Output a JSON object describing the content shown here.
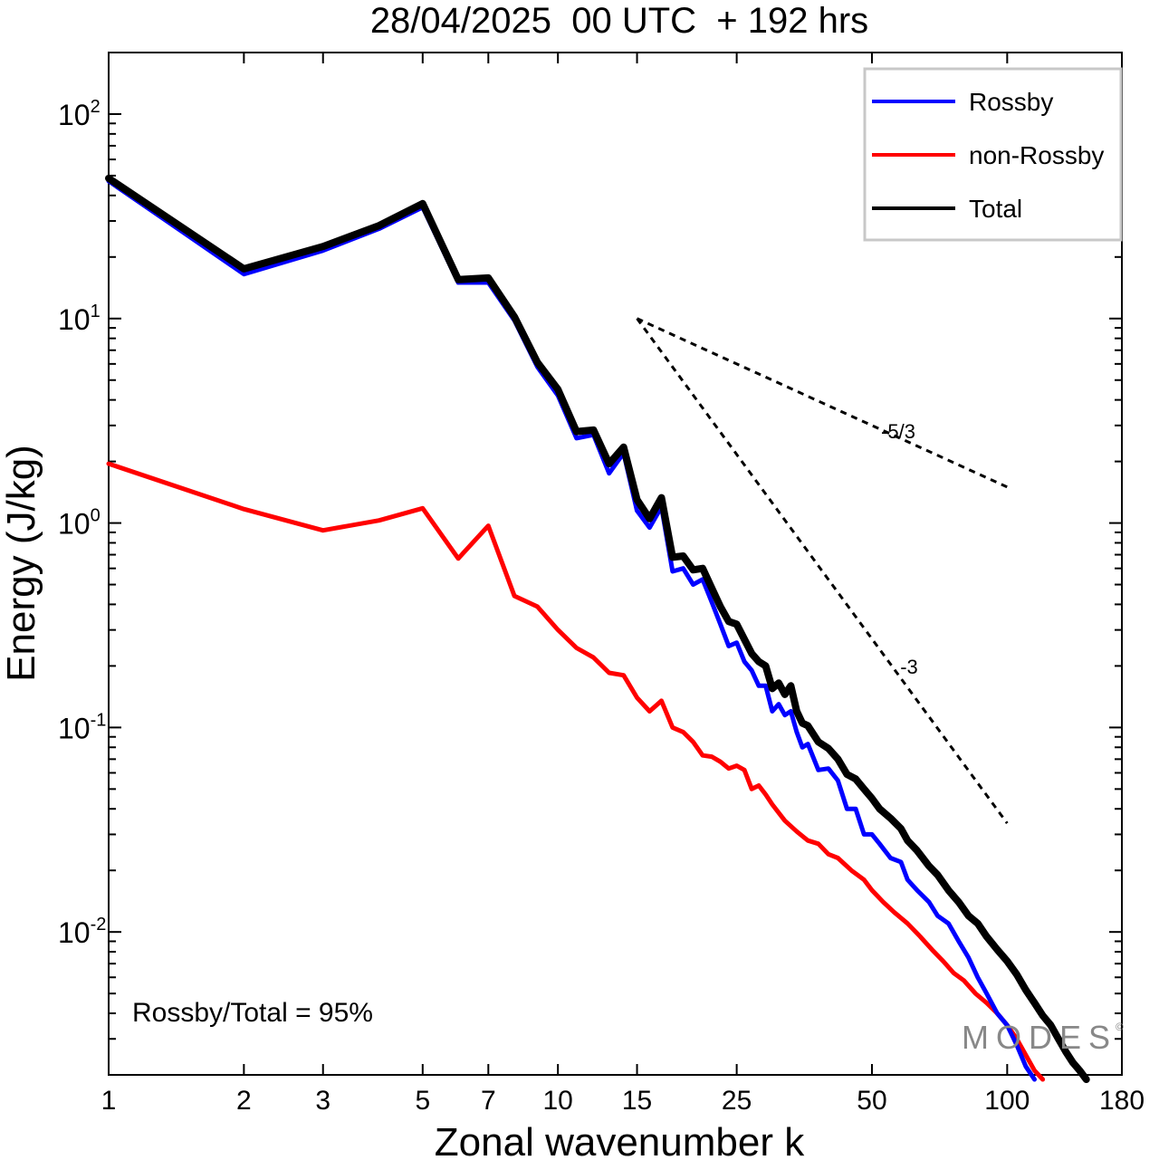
{
  "title": "28/04/2025  00 UTC  + 192 hrs",
  "chart_data": {
    "type": "line",
    "title": "28/04/2025  00 UTC  + 192 hrs",
    "xlabel": "Zonal wavenumber k",
    "ylabel": "Energy (J/kg)",
    "xscale": "log",
    "yscale": "log",
    "xlim": [
      1,
      180
    ],
    "ylim": [
      0.002,
      200
    ],
    "x_ticks": [
      1,
      2,
      3,
      5,
      7,
      10,
      15,
      25,
      50,
      100,
      180
    ],
    "x_tick_labels": [
      "1",
      "2",
      "3",
      "5",
      "7",
      "10",
      "15",
      "25",
      "50",
      "100",
      "180"
    ],
    "y_ticks": [
      {
        "value": 100,
        "base": "10",
        "exp": "2"
      },
      {
        "value": 10,
        "base": "10",
        "exp": "1"
      },
      {
        "value": 1,
        "base": "10",
        "exp": "0"
      },
      {
        "value": 0.1,
        "base": "10",
        "exp": "-1"
      },
      {
        "value": 0.01,
        "base": "10",
        "exp": "-2"
      }
    ],
    "legend_position": "top-right",
    "series": [
      {
        "name": "Rossby",
        "color": "#0000ff",
        "points": [
          [
            1,
            47
          ],
          [
            2,
            16.5
          ],
          [
            3,
            21.5
          ],
          [
            4,
            27.5
          ],
          [
            5,
            35
          ],
          [
            6,
            15
          ],
          [
            7,
            15
          ],
          [
            8,
            9.8
          ],
          [
            9,
            5.8
          ],
          [
            10,
            4.2
          ],
          [
            11,
            2.6
          ],
          [
            12,
            2.7
          ],
          [
            13,
            1.75
          ],
          [
            14,
            2.2
          ],
          [
            15,
            1.15
          ],
          [
            16,
            0.95
          ],
          [
            17,
            1.2
          ],
          [
            18,
            0.58
          ],
          [
            19,
            0.6
          ],
          [
            20,
            0.5
          ],
          [
            21,
            0.53
          ],
          [
            22,
            0.41
          ],
          [
            23,
            0.32
          ],
          [
            24,
            0.25
          ],
          [
            25,
            0.26
          ],
          [
            26,
            0.21
          ],
          [
            27,
            0.19
          ],
          [
            28,
            0.16
          ],
          [
            29,
            0.16
          ],
          [
            30,
            0.12
          ],
          [
            31,
            0.13
          ],
          [
            32,
            0.115
          ],
          [
            33,
            0.12
          ],
          [
            34,
            0.095
          ],
          [
            35,
            0.08
          ],
          [
            36,
            0.083
          ],
          [
            38,
            0.062
          ],
          [
            40,
            0.063
          ],
          [
            42,
            0.055
          ],
          [
            44,
            0.04
          ],
          [
            46,
            0.04
          ],
          [
            48,
            0.03
          ],
          [
            50,
            0.03
          ],
          [
            52,
            0.027
          ],
          [
            55,
            0.023
          ],
          [
            58,
            0.022
          ],
          [
            60,
            0.018
          ],
          [
            63,
            0.016
          ],
          [
            67,
            0.014
          ],
          [
            70,
            0.012
          ],
          [
            74,
            0.011
          ],
          [
            78,
            0.009
          ],
          [
            82,
            0.0075
          ],
          [
            86,
            0.006
          ],
          [
            90,
            0.005
          ],
          [
            95,
            0.004
          ],
          [
            100,
            0.0035
          ],
          [
            105,
            0.0028
          ],
          [
            110,
            0.0022
          ],
          [
            115,
            0.0019
          ]
        ]
      },
      {
        "name": "non-Rossby",
        "color": "#ff0000",
        "points": [
          [
            1,
            1.95
          ],
          [
            2,
            1.17
          ],
          [
            3,
            0.92
          ],
          [
            4,
            1.03
          ],
          [
            5,
            1.18
          ],
          [
            6,
            0.67
          ],
          [
            7,
            0.97
          ],
          [
            8,
            0.44
          ],
          [
            9,
            0.39
          ],
          [
            10,
            0.3
          ],
          [
            11,
            0.245
          ],
          [
            12,
            0.22
          ],
          [
            13,
            0.185
          ],
          [
            14,
            0.18
          ],
          [
            15,
            0.14
          ],
          [
            16,
            0.12
          ],
          [
            17,
            0.135
          ],
          [
            18,
            0.1
          ],
          [
            19,
            0.095
          ],
          [
            20,
            0.085
          ],
          [
            21,
            0.073
          ],
          [
            22,
            0.072
          ],
          [
            23,
            0.068
          ],
          [
            24,
            0.063
          ],
          [
            25,
            0.065
          ],
          [
            26,
            0.062
          ],
          [
            27,
            0.05
          ],
          [
            28,
            0.052
          ],
          [
            29,
            0.047
          ],
          [
            30,
            0.042
          ],
          [
            32,
            0.035
          ],
          [
            34,
            0.031
          ],
          [
            36,
            0.028
          ],
          [
            38,
            0.027
          ],
          [
            40,
            0.024
          ],
          [
            42,
            0.023
          ],
          [
            45,
            0.02
          ],
          [
            48,
            0.018
          ],
          [
            50,
            0.016
          ],
          [
            53,
            0.014
          ],
          [
            56,
            0.0125
          ],
          [
            60,
            0.011
          ],
          [
            64,
            0.0095
          ],
          [
            68,
            0.0082
          ],
          [
            72,
            0.0072
          ],
          [
            76,
            0.0063
          ],
          [
            80,
            0.0058
          ],
          [
            85,
            0.005
          ],
          [
            90,
            0.0045
          ],
          [
            95,
            0.004
          ],
          [
            100,
            0.0035
          ],
          [
            105,
            0.003
          ],
          [
            110,
            0.0025
          ],
          [
            115,
            0.0021
          ],
          [
            120,
            0.0019
          ]
        ]
      },
      {
        "name": "Total",
        "color": "#000000",
        "points": [
          [
            1,
            48.5
          ],
          [
            2,
            17.5
          ],
          [
            3,
            22.5
          ],
          [
            4,
            28.5
          ],
          [
            5,
            36.5
          ],
          [
            6,
            15.5
          ],
          [
            7,
            15.8
          ],
          [
            8,
            10.2
          ],
          [
            9,
            6.1
          ],
          [
            10,
            4.5
          ],
          [
            11,
            2.8
          ],
          [
            12,
            2.85
          ],
          [
            13,
            1.95
          ],
          [
            14,
            2.35
          ],
          [
            15,
            1.3
          ],
          [
            16,
            1.05
          ],
          [
            17,
            1.33
          ],
          [
            18,
            0.68
          ],
          [
            19,
            0.69
          ],
          [
            20,
            0.59
          ],
          [
            21,
            0.6
          ],
          [
            22,
            0.48
          ],
          [
            23,
            0.39
          ],
          [
            24,
            0.33
          ],
          [
            25,
            0.32
          ],
          [
            26,
            0.27
          ],
          [
            27,
            0.23
          ],
          [
            28,
            0.21
          ],
          [
            29,
            0.2
          ],
          [
            30,
            0.155
          ],
          [
            31,
            0.165
          ],
          [
            32,
            0.145
          ],
          [
            33,
            0.16
          ],
          [
            34,
            0.12
          ],
          [
            35,
            0.105
          ],
          [
            36,
            0.102
          ],
          [
            38,
            0.085
          ],
          [
            40,
            0.079
          ],
          [
            42,
            0.07
          ],
          [
            44,
            0.059
          ],
          [
            46,
            0.056
          ],
          [
            48,
            0.05
          ],
          [
            50,
            0.045
          ],
          [
            52,
            0.04
          ],
          [
            55,
            0.036
          ],
          [
            58,
            0.032
          ],
          [
            60,
            0.028
          ],
          [
            63,
            0.025
          ],
          [
            67,
            0.021
          ],
          [
            70,
            0.019
          ],
          [
            74,
            0.016
          ],
          [
            78,
            0.014
          ],
          [
            82,
            0.012
          ],
          [
            86,
            0.011
          ],
          [
            90,
            0.0095
          ],
          [
            95,
            0.0082
          ],
          [
            100,
            0.0072
          ],
          [
            105,
            0.0062
          ],
          [
            110,
            0.0052
          ],
          [
            115,
            0.0045
          ],
          [
            120,
            0.0039
          ],
          [
            125,
            0.0035
          ],
          [
            130,
            0.003
          ],
          [
            135,
            0.0026
          ],
          [
            140,
            0.0023
          ],
          [
            145,
            0.0021
          ],
          [
            150,
            0.0019
          ]
        ]
      }
    ],
    "reference_slopes": [
      {
        "label": "-5/3",
        "from": [
          15,
          10
        ],
        "to": [
          100,
          1.5
        ]
      },
      {
        "label": "-3",
        "from": [
          15,
          10
        ],
        "to": [
          100,
          0.034
        ]
      }
    ],
    "annotation": "Rossby/Total = 95%",
    "watermark": "MODES"
  }
}
